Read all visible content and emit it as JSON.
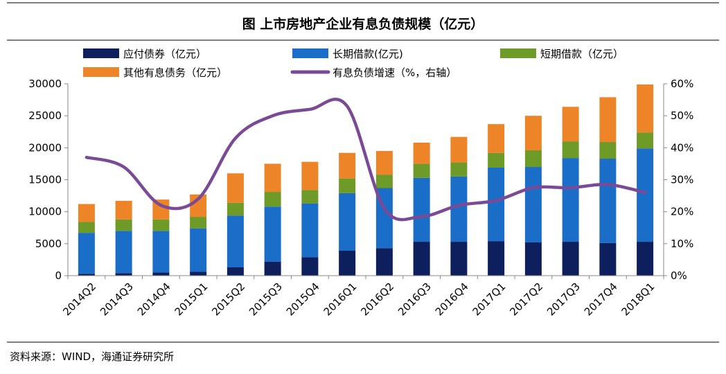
{
  "title": "图  上市房地产企业有息负债规模（亿元）",
  "source": "资料来源：WIND，海通证券研究所",
  "colors": {
    "payables": "#0d1f5c",
    "long_term": "#1b6ec7",
    "short_term": "#6e9a28",
    "other": "#ed8427",
    "growth": "#7a4a96",
    "axis": "#888888"
  },
  "chart_data": {
    "type": "bar",
    "stacked": true,
    "title": "上市房地产企业有息负债规模（亿元）",
    "categories": [
      "2014Q2",
      "2014Q3",
      "2014Q4",
      "2015Q1",
      "2015Q2",
      "2015Q3",
      "2015Q4",
      "2016Q1",
      "2016Q2",
      "2016Q3",
      "2016Q4",
      "2017Q1",
      "2017Q2",
      "2017Q3",
      "2017Q4",
      "2018Q1"
    ],
    "y_left": {
      "min": 0,
      "max": 30000,
      "ticks": [
        "0",
        "5000",
        "10000",
        "15000",
        "20000",
        "25000",
        "30000"
      ]
    },
    "y_right": {
      "min": 0,
      "max": 60,
      "ticks": [
        "0%",
        "10%",
        "20%",
        "30%",
        "40%",
        "50%",
        "60%"
      ]
    },
    "series": [
      {
        "key": "payables",
        "name": "应付债券（亿元）",
        "axis": "left",
        "type": "bar",
        "values": [
          300,
          400,
          500,
          600,
          1300,
          2200,
          2900,
          3900,
          4300,
          5300,
          5300,
          5400,
          5200,
          5300,
          5100,
          5300
        ]
      },
      {
        "key": "long_term",
        "name": "长期借款(亿元)",
        "axis": "left",
        "type": "bar",
        "values": [
          6400,
          6600,
          6500,
          6800,
          8100,
          8600,
          8400,
          9000,
          9400,
          10000,
          10200,
          11500,
          11800,
          13100,
          13200,
          14600
        ]
      },
      {
        "key": "short_term",
        "name": "短期借款（亿元）",
        "axis": "left",
        "type": "bar",
        "values": [
          1700,
          1800,
          1800,
          1800,
          2000,
          2300,
          2100,
          2300,
          2100,
          2200,
          2200,
          2300,
          2600,
          2600,
          2600,
          2500
        ]
      },
      {
        "key": "other",
        "name": "其他有息债务（亿元）",
        "axis": "left",
        "type": "bar",
        "values": [
          2800,
          2900,
          3100,
          3500,
          4600,
          4400,
          4400,
          4000,
          3700,
          3300,
          4000,
          4500,
          5400,
          5400,
          7000,
          7500
        ]
      },
      {
        "key": "growth",
        "name": "有息负债增速（%，右轴）",
        "axis": "right",
        "type": "line",
        "values": [
          37,
          34,
          22,
          24,
          43,
          50,
          52,
          53,
          21,
          18.5,
          22,
          23.5,
          27.5,
          27.5,
          28.5,
          26
        ]
      }
    ]
  }
}
